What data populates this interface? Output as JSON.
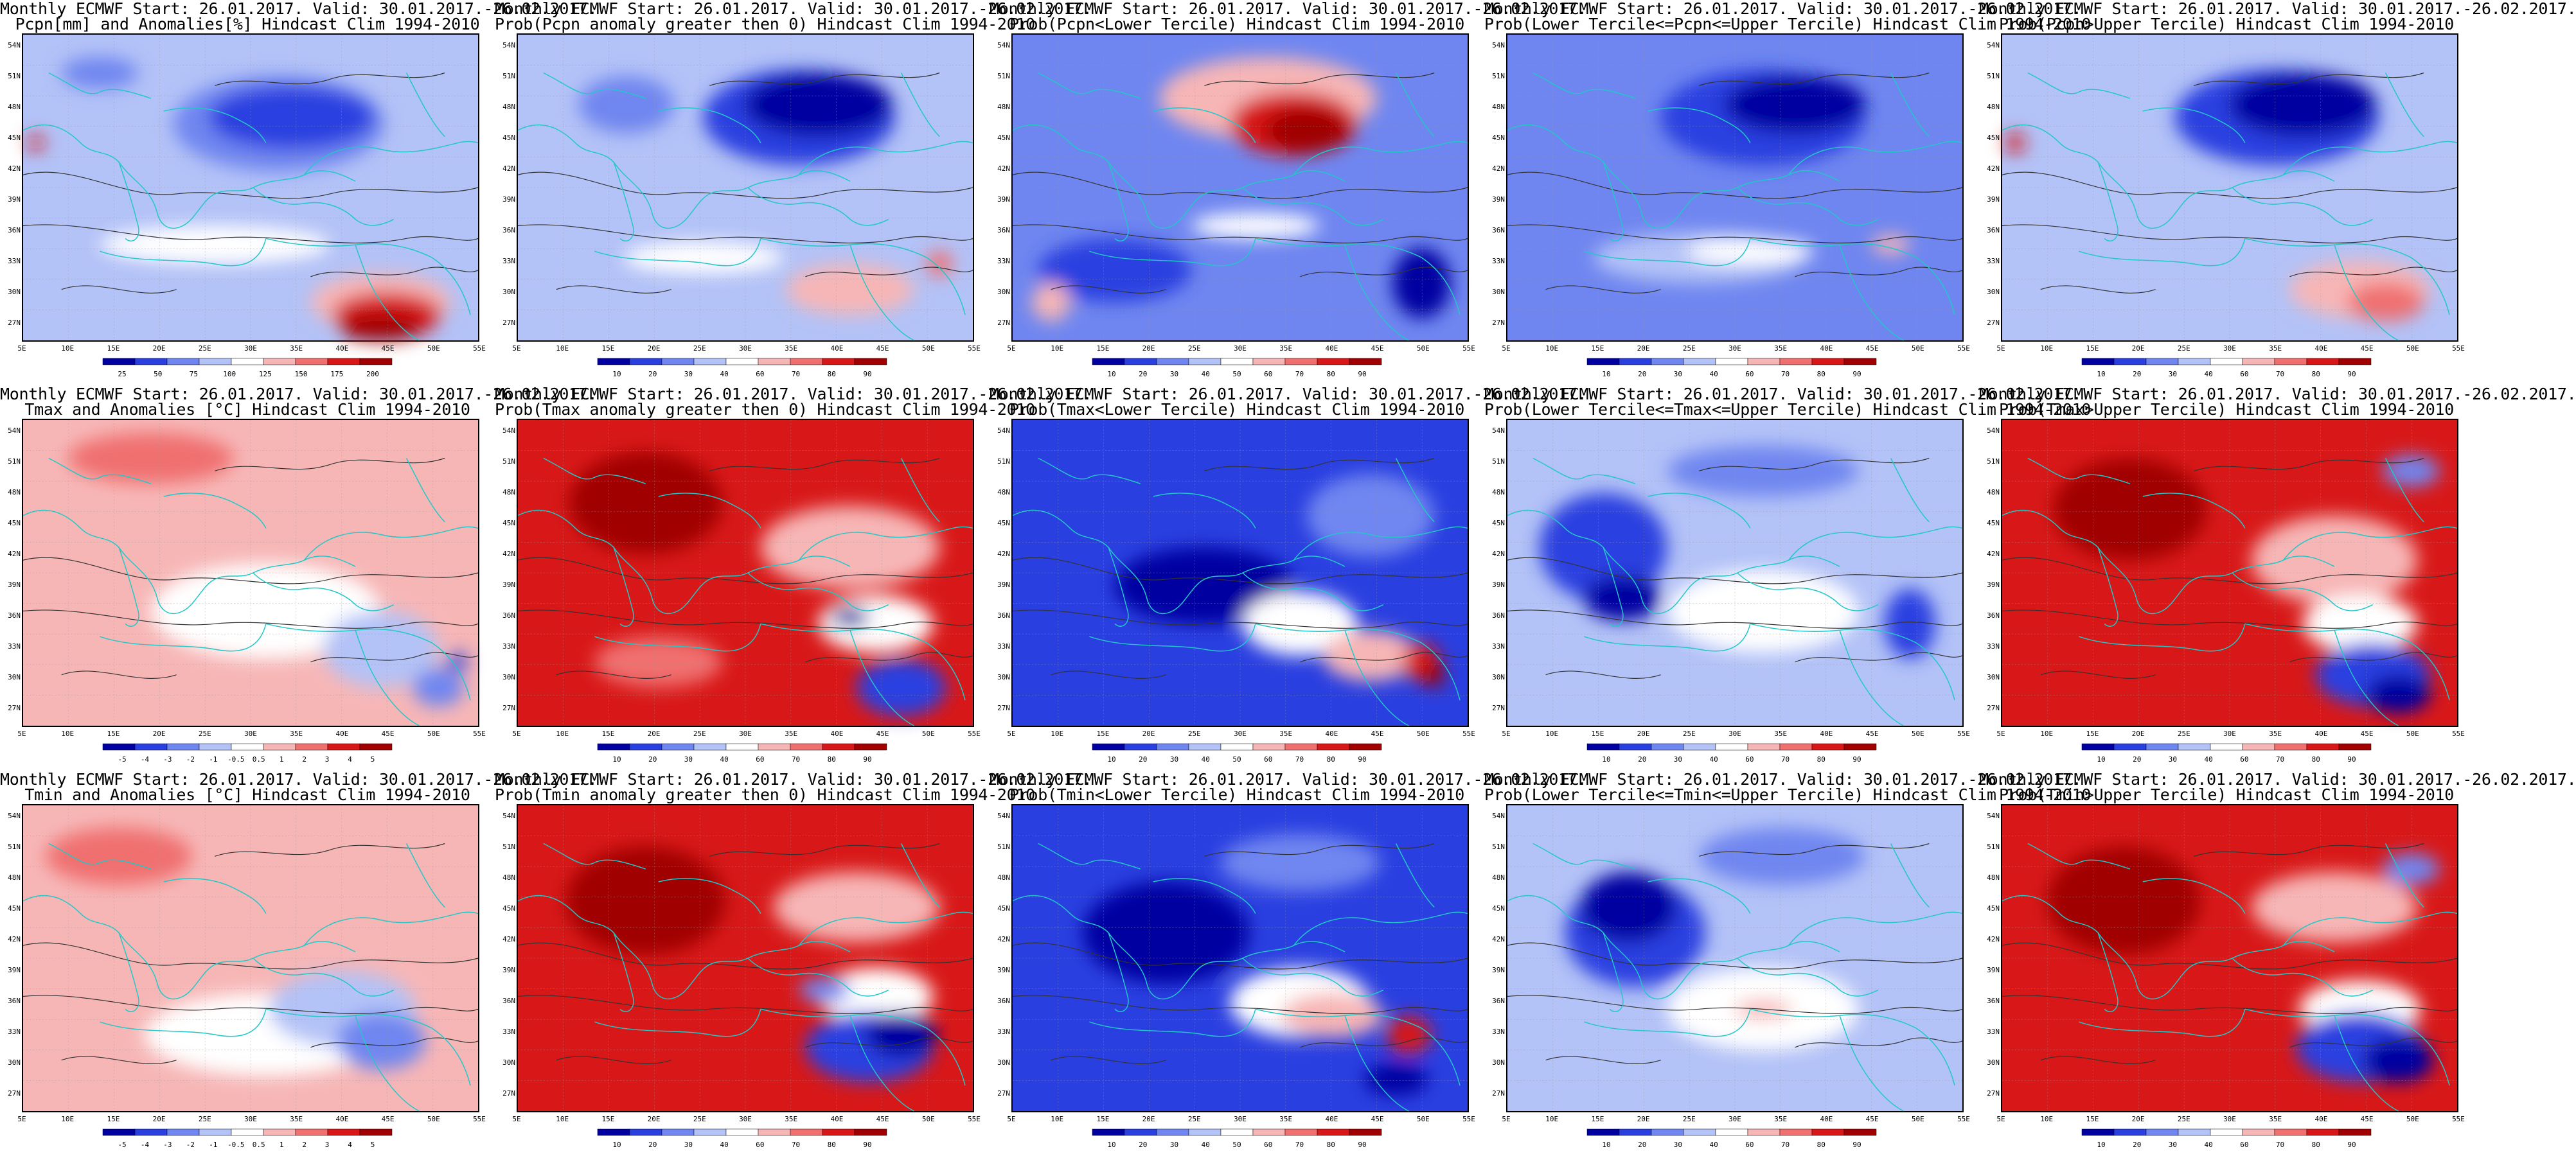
{
  "row_titles": [
    "Monthly ECMWF Start: 26.01.2017. Valid: 30.01.2017.-26.02.2017.",
    "Monthly ECMWF Start: 26.01.2017. Valid: 30.01.2017.-26.02.2017.",
    "Monthly ECMWF Start: 26.01.2017. Valid: 30.01.2017.-26.02.2017."
  ],
  "lat_labels": [
    "54N",
    "51N",
    "48N",
    "45N",
    "42N",
    "39N",
    "36N",
    "33N",
    "30N",
    "27N"
  ],
  "lon_labels": [
    "5E",
    "10E",
    "15E",
    "20E",
    "25E",
    "30E",
    "35E",
    "40E",
    "45E",
    "50E",
    "55E"
  ],
  "palette": {
    "blue_dark": "#0000a0",
    "blue": "#2a3fe0",
    "blue_mid": "#6f86f0",
    "blue_light": "#b3c2f7",
    "white": "#ffffff",
    "red_light": "#f7b6b6",
    "red_mid": "#f07070",
    "red": "#d81818",
    "red_dark": "#a00000",
    "coast": "#20c8c8",
    "contour": "#333333"
  },
  "panels": [
    {
      "line1": "Monthly ECMWF Start: 26.01.2017. Valid: 30.01.2017.-26.02.2017.",
      "line2": "Pcpn[mm] and Anomalies[%] Hindcast Clim 1994-2010",
      "ticks": [
        "25",
        "50",
        "75",
        "100",
        "125",
        "150",
        "175",
        "200"
      ],
      "scheme": "anom_pcp"
    },
    {
      "line1": "Monthly ECMWF Start: 26.01.2017. Valid: 30.01.2017.-26.02.2017.",
      "line2": "Prob(Pcpn anomaly greater then 0) Hindcast Clim 1994-2010",
      "ticks": [
        "10",
        "20",
        "30",
        "40",
        "60",
        "70",
        "80",
        "90"
      ],
      "scheme": "prob_pcp_pos"
    },
    {
      "line1": "Monthly ECMWF Start: 26.01.2017. Valid: 30.01.2017.-26.02.2017.",
      "line2": "Prob(Pcpn<Lower Tercile) Hindcast Clim 1994-2010",
      "ticks": [
        "10",
        "20",
        "30",
        "40",
        "50",
        "60",
        "70",
        "80",
        "90"
      ],
      "scheme": "prob_pcp_low"
    },
    {
      "line1": "Monthly ECMWF Start: 26.01.2017. Valid: 30.01.2017.-26.02.2017.",
      "line2": "Prob(Lower Tercile<=Pcpn<=Upper Tercile) Hindcast Clim 1994-2010",
      "ticks": [
        "10",
        "20",
        "30",
        "40",
        "60",
        "70",
        "80",
        "90"
      ],
      "scheme": "prob_pcp_mid"
    },
    {
      "line1": "Monthly ECMWF Start: 26.01.2017. Valid: 30.01.2017.-26.02.2017.",
      "line2": "Prob(Pcpn>Upper Tercile) Hindcast Clim 1994-2010",
      "ticks": [
        "10",
        "20",
        "30",
        "40",
        "60",
        "70",
        "80",
        "90"
      ],
      "scheme": "prob_pcp_up"
    },
    {
      "line1": "Monthly ECMWF Start: 26.01.2017. Valid: 30.01.2017.-26.02.2017.",
      "line2": "Tmax and Anomalies [°C] Hindcast Clim 1994-2010",
      "ticks": [
        "-5",
        "-4",
        "-3",
        "-2",
        "-1",
        "-0.5",
        "0.5",
        "1",
        "2",
        "3",
        "4",
        "5"
      ],
      "scheme": "anom_tmax"
    },
    {
      "line1": "Monthly ECMWF Start: 26.01.2017. Valid: 30.01.2017.-26.02.2017.",
      "line2": "Prob(Tmax anomaly greater then 0) Hindcast Clim 1994-2010",
      "ticks": [
        "10",
        "20",
        "30",
        "40",
        "60",
        "70",
        "80",
        "90"
      ],
      "scheme": "prob_tmax_pos"
    },
    {
      "line1": "Monthly ECMWF Start: 26.01.2017. Valid: 30.01.2017.-26.02.2017.",
      "line2": "Prob(Tmax<Lower Tercile) Hindcast Clim 1994-2010",
      "ticks": [
        "10",
        "20",
        "30",
        "40",
        "50",
        "60",
        "70",
        "80",
        "90"
      ],
      "scheme": "prob_tmax_low"
    },
    {
      "line1": "Monthly ECMWF Start: 26.01.2017. Valid: 30.01.2017.-26.02.2017.",
      "line2": "Prob(Lower Tercile<=Tmax<=Upper Tercile) Hindcast Clim 1994-2010",
      "ticks": [
        "10",
        "20",
        "30",
        "40",
        "60",
        "70",
        "80",
        "90"
      ],
      "scheme": "prob_tmax_mid"
    },
    {
      "line1": "Monthly ECMWF Start: 26.01.2017. Valid: 30.01.2017.-26.02.2017.",
      "line2": "Prob(Tmax>Upper Tercile) Hindcast Clim 1994-2010",
      "ticks": [
        "10",
        "20",
        "30",
        "40",
        "60",
        "70",
        "80",
        "90"
      ],
      "scheme": "prob_tmax_up"
    },
    {
      "line1": "Monthly ECMWF Start: 26.01.2017. Valid: 30.01.2017.-26.02.2017.",
      "line2": "Tmin and Anomalies [°C] Hindcast Clim 1994-2010",
      "ticks": [
        "-5",
        "-4",
        "-3",
        "-2",
        "-1",
        "-0.5",
        "0.5",
        "1",
        "2",
        "3",
        "4",
        "5"
      ],
      "scheme": "anom_tmin"
    },
    {
      "line1": "Monthly ECMWF Start: 26.01.2017. Valid: 30.01.2017.-26.02.2017.",
      "line2": "Prob(Tmin anomaly greater then 0) Hindcast Clim 1994-2010",
      "ticks": [
        "10",
        "20",
        "30",
        "40",
        "60",
        "70",
        "80",
        "90"
      ],
      "scheme": "prob_tmin_pos"
    },
    {
      "line1": "Monthly ECMWF Start: 26.01.2017. Valid: 30.01.2017.-26.02.2017.",
      "line2": "Prob(Tmin<Lower Tercile) Hindcast Clim 1994-2010",
      "ticks": [
        "10",
        "20",
        "30",
        "40",
        "50",
        "60",
        "70",
        "80",
        "90"
      ],
      "scheme": "prob_tmin_low"
    },
    {
      "line1": "Monthly ECMWF Start: 26.01.2017. Valid: 30.01.2017.-26.02.2017.",
      "line2": "Prob(Lower Tercile<=Tmin<=Upper Tercile) Hindcast Clim 1994-2010",
      "ticks": [
        "10",
        "20",
        "30",
        "40",
        "60",
        "70",
        "80",
        "90"
      ],
      "scheme": "prob_tmin_mid"
    },
    {
      "line1": "Monthly ECMWF Start: 26.01.2017. Valid: 30.01.2017.-26.02.2017.",
      "line2": "Prob(Tmin>Upper Tercile) Hindcast Clim 1994-2010",
      "ticks": [
        "10",
        "20",
        "30",
        "40",
        "60",
        "70",
        "80",
        "90"
      ],
      "scheme": "prob_tmin_up"
    }
  ]
}
